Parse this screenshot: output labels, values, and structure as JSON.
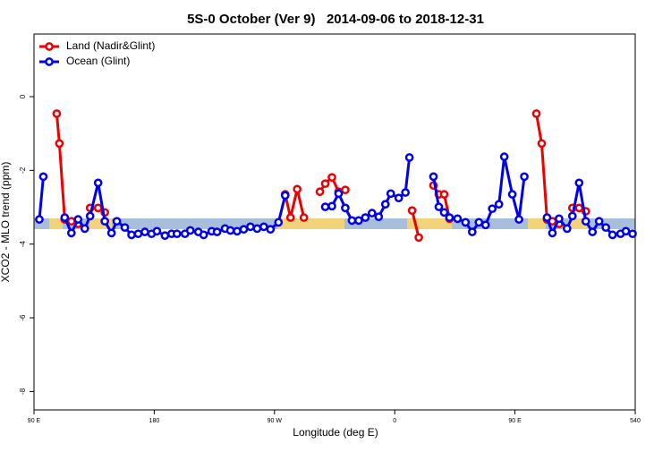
{
  "chart_data": {
    "type": "line",
    "title": "5S-0 October (Ver 9)   2014-09-06 to 2018-12-31",
    "xlabel": "Longitude (deg E)",
    "ylabel": "XCO2 - MLO trend (ppm)",
    "x": [
      94,
      97,
      107,
      109,
      113,
      118,
      123,
      128,
      132,
      138,
      143,
      148,
      152,
      158,
      163,
      168,
      173,
      178,
      182,
      188,
      193,
      197,
      203,
      207,
      213,
      217,
      223,
      227,
      233,
      237,
      242,
      247,
      252,
      257,
      262,
      267,
      273,
      278,
      282,
      287,
      292,
      298,
      304,
      308,
      313,
      318,
      323,
      328,
      333,
      338,
      343,
      348,
      353,
      357,
      363,
      368,
      371,
      373,
      378,
      383,
      389,
      393,
      397,
      401,
      407,
      413,
      418,
      423,
      428,
      433,
      438,
      442,
      448,
      453,
      457,
      466,
      470,
      474,
      478,
      483,
      489,
      493,
      498,
      503,
      508,
      513,
      518,
      523,
      529,
      533,
      538
    ],
    "series": [
      {
        "name": "Land (Nadir&Glint)",
        "color": "#ee0000",
        "values": [
          null,
          null,
          -0.46,
          -1.27,
          -3.33,
          -3.38,
          -3.45,
          null,
          -3.02,
          -3.02,
          -3.14,
          null,
          null,
          null,
          null,
          null,
          null,
          null,
          null,
          null,
          null,
          null,
          null,
          null,
          null,
          null,
          null,
          null,
          null,
          null,
          null,
          null,
          null,
          null,
          null,
          null,
          null,
          -2.65,
          -3.28,
          -2.51,
          -3.28,
          null,
          -2.58,
          -2.36,
          -2.19,
          -2.58,
          -2.53,
          null,
          null,
          null,
          null,
          null,
          null,
          null,
          null,
          null,
          null,
          -3.09,
          -3.82,
          null,
          -2.41,
          -2.65,
          -2.65,
          -3.31,
          null,
          null,
          null,
          null,
          null,
          null,
          null,
          null,
          null,
          null,
          null,
          -0.46,
          -1.27,
          -3.33,
          -3.38,
          -3.45,
          null,
          -3.02,
          -3.02,
          -3.11,
          null,
          null,
          null,
          null,
          null,
          null,
          null
        ]
      },
      {
        "name": "Ocean (Glint)",
        "color": "#0000ee",
        "values": [
          -3.33,
          -2.17,
          null,
          null,
          -3.28,
          -3.7,
          -3.33,
          -3.58,
          -3.24,
          -2.34,
          -3.38,
          -3.7,
          -3.38,
          -3.55,
          -3.75,
          -3.72,
          -3.67,
          -3.72,
          -3.65,
          -3.77,
          -3.72,
          -3.72,
          -3.72,
          -3.63,
          -3.67,
          -3.75,
          -3.65,
          -3.67,
          -3.58,
          -3.63,
          -3.65,
          -3.6,
          -3.53,
          -3.58,
          -3.53,
          -3.6,
          -3.41,
          -2.68,
          null,
          null,
          null,
          null,
          null,
          -2.99,
          -2.97,
          -2.63,
          -3.02,
          -3.36,
          -3.36,
          -3.28,
          -3.16,
          -3.26,
          -2.92,
          -2.63,
          -2.75,
          -2.6,
          -1.65,
          null,
          null,
          null,
          -2.17,
          -2.99,
          -3.14,
          -3.28,
          -3.31,
          -3.41,
          -3.67,
          -3.41,
          -3.48,
          -3.04,
          -2.92,
          -1.63,
          -2.65,
          -3.33,
          -2.17,
          null,
          null,
          -3.28,
          -3.7,
          -3.31,
          -3.58,
          -3.24,
          -2.34,
          -3.38,
          -3.67,
          -3.38,
          -3.55,
          -3.75,
          -3.72,
          -3.65,
          -3.72
        ]
      }
    ],
    "xlim": [
      90,
      540
    ],
    "xticks": [
      {
        "value": 90,
        "label": "90 E"
      },
      180,
      {
        "value": 270,
        "label": "90 W"
      },
      {
        "value": 360,
        "label": "0"
      },
      {
        "value": 450,
        "label": "90 E"
      },
      540
    ],
    "ylim": [
      -8.5,
      1.7
    ],
    "yticks": [
      0,
      -2,
      -4,
      -6,
      -8
    ],
    "legend": "top-left"
  }
}
